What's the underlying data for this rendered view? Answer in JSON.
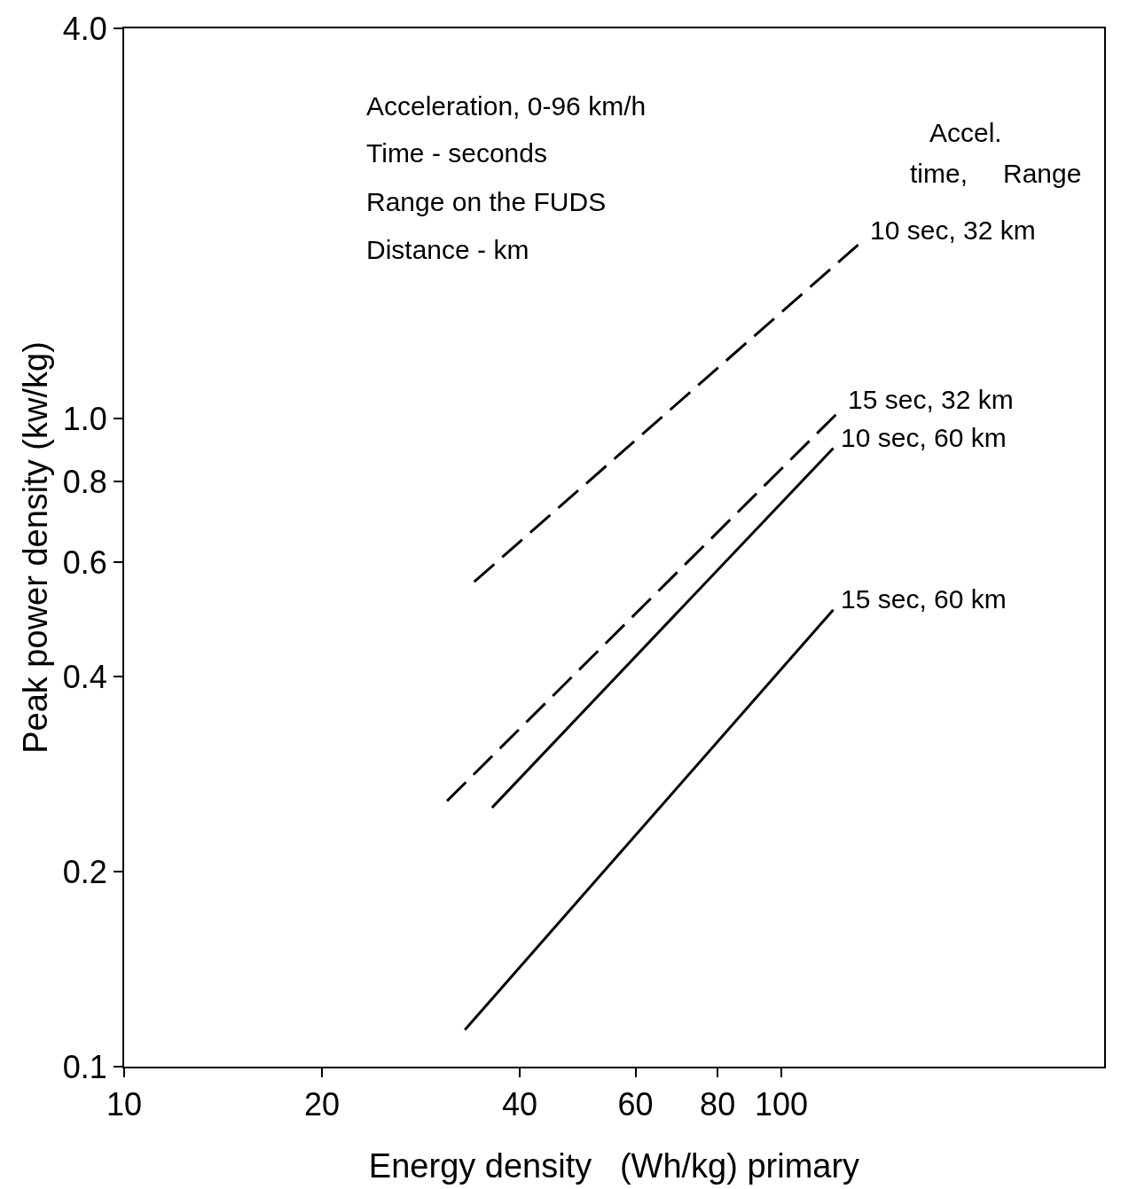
{
  "chart_data": {
    "type": "line",
    "xlabel": "Energy density   (Wh/kg) primary",
    "ylabel": "Peak power density (kw/kg)",
    "log": "xy",
    "grid": false,
    "legend": false,
    "marker": "none",
    "xlim": [
      10,
      310
    ],
    "xticks": [
      10,
      20,
      40,
      60,
      80,
      100
    ],
    "ylim": [
      0.1,
      4
    ],
    "yticks": [
      0.1,
      0.2,
      0.4,
      0.6,
      0.8,
      {
        "value": 1,
        "label": "1.0"
      },
      {
        "value": 4,
        "label": "4.0"
      }
    ],
    "annotations": [
      "Acceleration, 0-96 km/h",
      "Time - seconds",
      "Range on the FUDS",
      "Distance - km",
      "Accel.",
      "time,",
      "Range"
    ],
    "series": [
      {
        "name": "10 sec, 32 km",
        "color": "#000000",
        "line_style": "dashed",
        "x": [
          34.1,
          133
        ],
        "values": [
          0.56,
          1.88
        ]
      },
      {
        "name": "15 sec, 32 km",
        "color": "#000000",
        "line_style": "dashed",
        "x": [
          31,
          123
        ],
        "values": [
          0.257,
          1.03
        ]
      },
      {
        "name": "10 sec, 60 km",
        "color": "#000000",
        "line_style": "solid",
        "x": [
          36.3,
          120
        ],
        "values": [
          0.251,
          0.9
        ]
      },
      {
        "name": "15 sec, 60 km",
        "color": "#000000",
        "line_style": "solid",
        "x": [
          33,
          120
        ],
        "values": [
          0.114,
          0.507
        ]
      }
    ]
  }
}
